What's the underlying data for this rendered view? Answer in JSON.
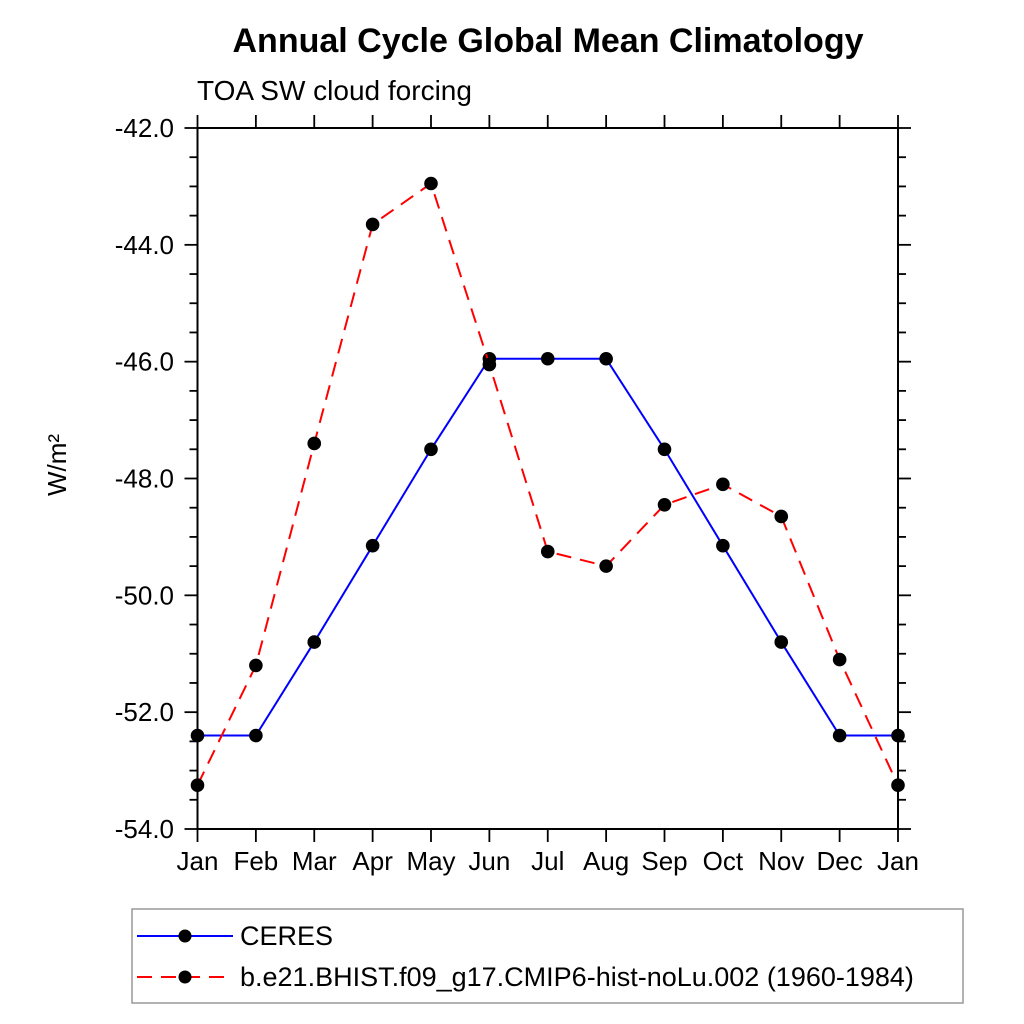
{
  "chart_data": {
    "type": "line",
    "title": "Annual Cycle Global Mean Climatology",
    "subtitle": "TOA SW cloud forcing",
    "ylabel": "W/m²",
    "xlabel": "",
    "categories": [
      "Jan",
      "Feb",
      "Mar",
      "Apr",
      "May",
      "Jun",
      "Jul",
      "Aug",
      "Sep",
      "Oct",
      "Nov",
      "Dec",
      "Jan"
    ],
    "ylim": [
      -54.0,
      -42.0
    ],
    "ytick_major": 2.0,
    "ytick_minor": 0.5,
    "y_tick_labels": [
      "-42.0",
      "-44.0",
      "-46.0",
      "-48.0",
      "-50.0",
      "-52.0",
      "-54.0"
    ],
    "grid": "off",
    "legend_position": "bottom-left-box",
    "frame_color": "#000000",
    "marker_shape": "filled-circle",
    "series": [
      {
        "name": "CERES",
        "color": "#0000ff",
        "style": "solid",
        "marker_color": "#000000",
        "values": [
          -52.4,
          -52.4,
          -50.8,
          -49.15,
          -47.5,
          -45.95,
          -45.95,
          -45.95,
          -47.5,
          -49.15,
          -50.8,
          -52.4,
          -52.4
        ]
      },
      {
        "name": "b.e21.BHIST.f09_g17.CMIP6-hist-noLu.002 (1960-1984)",
        "color": "#ff0000",
        "style": "dashed",
        "marker_color": "#000000",
        "values": [
          -53.25,
          -51.2,
          -47.4,
          -43.65,
          -42.95,
          -46.05,
          -49.25,
          -49.5,
          -48.45,
          -48.1,
          -48.65,
          -51.1,
          -53.25
        ]
      }
    ]
  }
}
